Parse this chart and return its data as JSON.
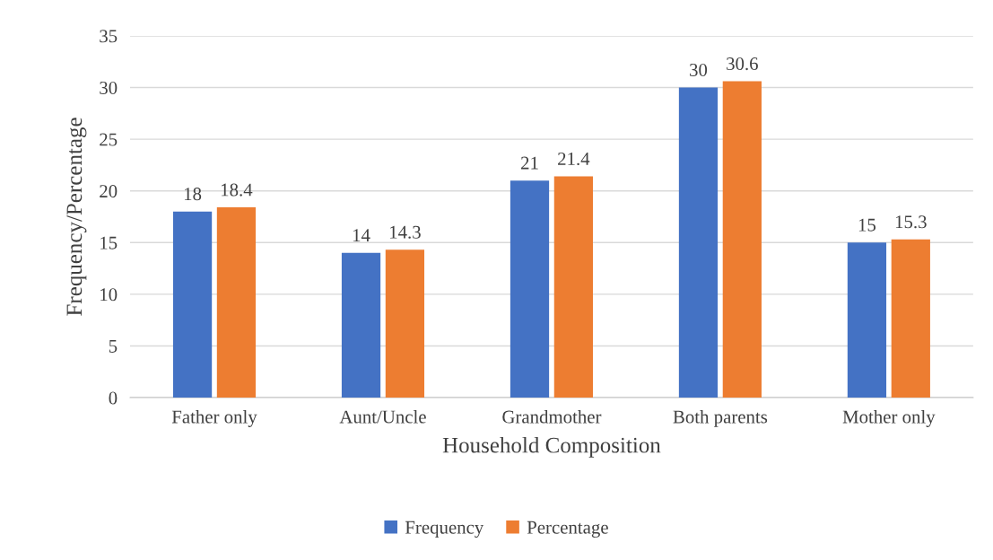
{
  "chart_data": {
    "type": "bar",
    "xlabel": "Household Composition",
    "ylabel": "Frequency/Percentage",
    "categories": [
      "Father only",
      "Aunt/Uncle",
      "Grandmother",
      "Both parents",
      "Mother only"
    ],
    "series": [
      {
        "name": "Frequency",
        "color": "#4472c4",
        "values": [
          18,
          14,
          21,
          30,
          15
        ]
      },
      {
        "name": "Percentage",
        "color": "#ed7d31",
        "values": [
          18.4,
          14.3,
          21.4,
          30.6,
          15.3
        ]
      }
    ],
    "ylim": [
      0,
      35
    ],
    "yticks": [
      0,
      5,
      10,
      15,
      20,
      25,
      30,
      35
    ],
    "grid": "y",
    "legend": "bottom",
    "data_labels": true
  }
}
